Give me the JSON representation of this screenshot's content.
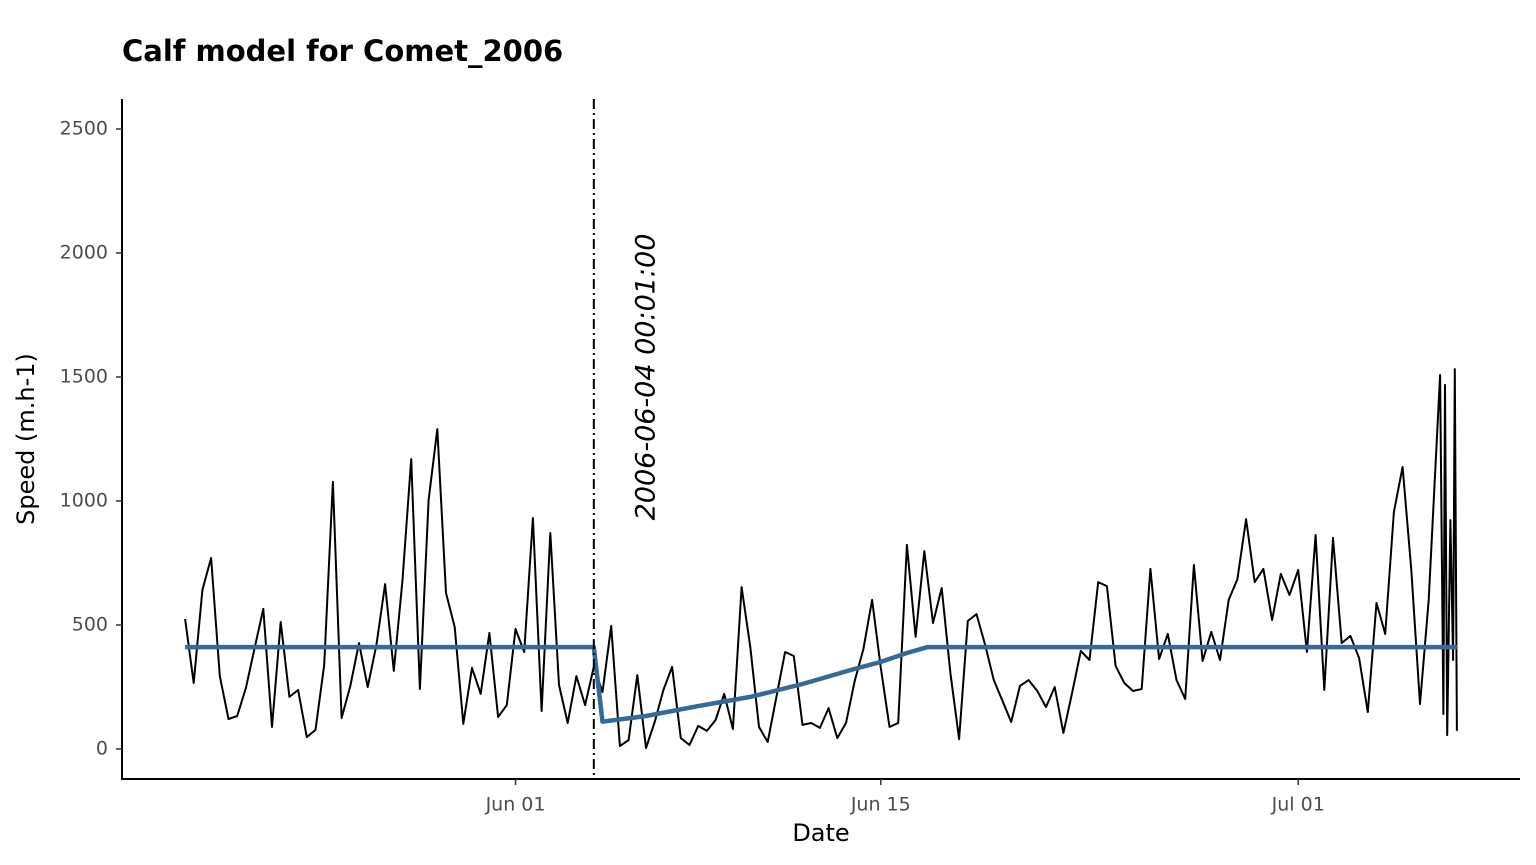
{
  "chart_data": {
    "type": "line",
    "title": "Calf model for Comet_2006",
    "x_label": "Date",
    "y_label": "Speed (m.h-1)",
    "xlim": [
      "05-16 22:00",
      "07-09 12:00"
    ],
    "xticks": [
      {
        "value": "06-01 00:00",
        "label": "Jun 01"
      },
      {
        "value": "06-15 00:00",
        "label": "Jun 15"
      },
      {
        "value": "07-01 00:00",
        "label": "Jul 01"
      }
    ],
    "ylim": [
      -121,
      2621
    ],
    "yticks": [
      0,
      500,
      1000,
      1500,
      2000,
      2500
    ],
    "grid": false,
    "changepoint": {
      "x": "06-04 00:01",
      "label": "2006-06-04 00:01:00"
    },
    "series": [
      {
        "color": "#000000",
        "width": 2,
        "x": [
          "05-19 08:00",
          "05-19 16:00",
          "05-20 00:00",
          "05-20 08:00",
          "05-20 16:00",
          "05-21 00:00",
          "05-21 08:00",
          "05-21 16:00",
          "05-22 00:00",
          "05-22 08:00",
          "05-22 16:00",
          "05-23 00:00",
          "05-23 08:00",
          "05-23 16:00",
          "05-24 00:00",
          "05-24 08:00",
          "05-24 16:00",
          "05-25 00:00",
          "05-25 08:00",
          "05-25 16:00",
          "05-26 00:00",
          "05-26 08:00",
          "05-26 16:00",
          "05-27 00:00",
          "05-27 08:00",
          "05-27 16:00",
          "05-28 00:00",
          "05-28 08:00",
          "05-28 16:00",
          "05-29 00:00",
          "05-29 08:00",
          "05-29 16:00",
          "05-30 00:00",
          "05-30 08:00",
          "05-30 16:00",
          "05-31 00:00",
          "05-31 08:00",
          "05-31 16:00",
          "06-01 00:00",
          "06-01 08:00",
          "06-01 16:00",
          "06-02 00:00",
          "06-02 08:00",
          "06-02 16:00",
          "06-03 00:00",
          "06-03 08:00",
          "06-03 16:00",
          "06-04 00:00",
          "06-04 08:00",
          "06-04 16:00",
          "06-05 00:00",
          "06-05 08:00",
          "06-05 16:00",
          "06-06 00:00",
          "06-06 08:00",
          "06-06 16:00",
          "06-07 00:00",
          "06-07 08:00",
          "06-07 16:00",
          "06-08 00:00",
          "06-08 08:00",
          "06-08 16:00",
          "06-09 00:00",
          "06-09 08:00",
          "06-09 16:00",
          "06-10 00:00",
          "06-10 08:00",
          "06-10 16:00",
          "06-11 00:00",
          "06-11 08:00",
          "06-11 16:00",
          "06-12 00:00",
          "06-12 08:00",
          "06-12 16:00",
          "06-13 00:00",
          "06-13 08:00",
          "06-13 16:00",
          "06-14 00:00",
          "06-14 08:00",
          "06-14 16:00",
          "06-15 00:00",
          "06-15 08:00",
          "06-15 16:00",
          "06-16 00:00",
          "06-16 08:00",
          "06-16 16:00",
          "06-17 00:00",
          "06-17 08:00",
          "06-17 16:00",
          "06-18 00:00",
          "06-18 08:00",
          "06-18 16:00",
          "06-19 00:00",
          "06-19 08:00",
          "06-19 16:00",
          "06-20 00:00",
          "06-20 08:00",
          "06-20 16:00",
          "06-21 00:00",
          "06-21 08:00",
          "06-21 16:00",
          "06-22 00:00",
          "06-22 08:00",
          "06-22 16:00",
          "06-23 00:00",
          "06-23 08:00",
          "06-23 16:00",
          "06-24 00:00",
          "06-24 08:00",
          "06-24 16:00",
          "06-25 00:00",
          "06-25 08:00",
          "06-25 16:00",
          "06-26 00:00",
          "06-26 08:00",
          "06-26 16:00",
          "06-27 00:00",
          "06-27 08:00",
          "06-27 16:00",
          "06-28 00:00",
          "06-28 08:00",
          "06-28 16:00",
          "06-29 00:00",
          "06-29 08:00",
          "06-29 16:00",
          "06-30 00:00",
          "06-30 08:00",
          "06-30 16:00",
          "07-01 00:00",
          "07-01 08:00",
          "07-01 16:00",
          "07-02 00:00",
          "07-02 08:00",
          "07-02 16:00",
          "07-03 00:00",
          "07-03 08:00",
          "07-03 16:00",
          "07-04 00:00",
          "07-04 08:00",
          "07-04 16:00",
          "07-05 00:00",
          "07-05 08:00",
          "07-05 16:00",
          "07-06 00:00",
          "07-06 10:30",
          "07-06 13:30",
          "07-06 15:00",
          "07-06 17:00",
          "07-06 20:00",
          "07-06 22:30",
          "07-07 00:00",
          "07-07 02:00"
        ],
        "values": [
          524,
          266,
          641,
          770,
          294,
          121,
          133,
          246,
          407,
          565,
          89,
          512,
          210,
          238,
          48,
          77,
          339,
          1077,
          125,
          254,
          427,
          250,
          419,
          665,
          315,
          681,
          1169,
          242,
          1004,
          1290,
          629,
          492,
          101,
          327,
          222,
          468,
          129,
          177,
          484,
          391,
          931,
          153,
          871,
          258,
          105,
          294,
          177,
          331,
          230,
          496,
          12,
          36,
          298,
          4,
          109,
          238,
          331,
          44,
          16,
          93,
          73,
          117,
          222,
          81,
          653,
          411,
          89,
          28,
          210,
          391,
          375,
          97,
          105,
          85,
          165,
          44,
          105,
          274,
          403,
          601,
          327,
          89,
          105,
          823,
          452,
          798,
          508,
          649,
          306,
          40,
          516,
          544,
          419,
          278,
          194,
          109,
          254,
          278,
          234,
          169,
          250,
          65,
          226,
          395,
          359,
          673,
          657,
          335,
          266,
          234,
          242,
          726,
          363,
          464,
          278,
          202,
          742,
          355,
          472,
          359,
          601,
          685,
          927,
          673,
          726,
          520,
          706,
          621,
          722,
          391,
          863,
          238,
          851,
          427,
          456,
          367,
          149,
          589,
          464,
          956,
          1137,
          722,
          181,
          601,
          1508,
          141,
          1468,
          56,
          923,
          359,
          1532,
          73
        ]
      },
      {
        "color": "#336a98",
        "width": 4.5,
        "x": [
          "05-19 08:00",
          "06-04 00:00",
          "06-04 08:00",
          "06-06 00:00",
          "06-08 00:00",
          "06-10 00:00",
          "06-12 00:00",
          "06-14 00:00",
          "06-15 00:00",
          "06-16 00:00",
          "06-16 19:00",
          "07-07 02:00"
        ],
        "values": [
          411,
          411,
          110,
          133,
          173,
          210,
          262,
          323,
          351,
          387,
          411,
          411
        ]
      }
    ]
  }
}
